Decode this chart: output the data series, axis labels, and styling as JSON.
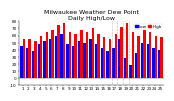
{
  "title": "Milwaukee Weather Dew Point",
  "subtitle": "Daily High/Low",
  "background_color": "#ffffff",
  "high_color": "#ff0000",
  "low_color": "#0000ff",
  "legend_high": "High",
  "legend_low": "Low",
  "bar_width": 0.42,
  "x_labels": [
    "1",
    "2",
    "3",
    "4",
    "5",
    "6",
    "7",
    "8",
    "9",
    "10",
    "11",
    "12",
    "13",
    "14",
    "15",
    "16",
    "17",
    "18",
    "19",
    "20",
    "21",
    "22",
    "23",
    "24",
    "25"
  ],
  "high_values": [
    55,
    55,
    52,
    60,
    65,
    68,
    75,
    78,
    65,
    62,
    68,
    65,
    70,
    62,
    58,
    55,
    62,
    72,
    78,
    65,
    60,
    68,
    65,
    60,
    58
  ],
  "low_values": [
    45,
    42,
    38,
    48,
    52,
    55,
    60,
    62,
    48,
    45,
    52,
    50,
    55,
    48,
    42,
    38,
    42,
    55,
    28,
    18,
    35,
    50,
    48,
    42,
    40
  ],
  "ylim": [
    -10,
    80
  ],
  "yticks": [
    -10,
    0,
    10,
    20,
    30,
    40,
    50,
    60,
    70,
    80
  ],
  "title_fontsize": 4.5,
  "tick_fontsize": 3.0,
  "legend_fontsize": 3.0,
  "dotted_line_x": [
    15.5,
    16.5,
    17.5,
    18.5
  ]
}
